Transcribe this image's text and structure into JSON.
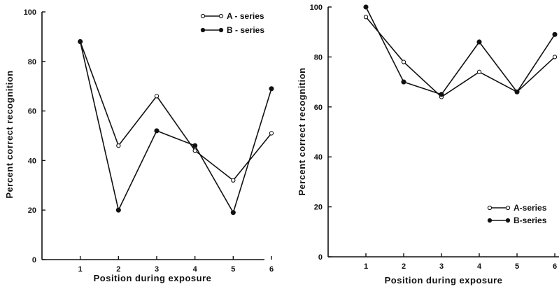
{
  "chart_data": [
    {
      "type": "line",
      "xlabel": "Position during exposure",
      "ylabel": "Percent correct recognition",
      "x": [
        1,
        2,
        3,
        4,
        5,
        6
      ],
      "xlim": [
        0,
        6
      ],
      "ylim": [
        0,
        100
      ],
      "xticks": [
        "1",
        "2",
        "3",
        "4",
        "5",
        "6"
      ],
      "yticks": [
        "0",
        "20",
        "40",
        "60",
        "80",
        "100"
      ],
      "legend_position": "top-right",
      "series": [
        {
          "name": "A - series",
          "marker": "open-circle",
          "values": [
            88,
            46,
            66,
            44,
            32,
            51
          ]
        },
        {
          "name": "B - series",
          "marker": "filled-circle",
          "values": [
            88,
            20,
            52,
            46,
            19,
            69
          ]
        }
      ]
    },
    {
      "type": "line",
      "xlabel": "Position during exposure",
      "ylabel": "Percent correct recognition",
      "x": [
        1,
        2,
        3,
        4,
        5,
        6
      ],
      "xlim": [
        0,
        6
      ],
      "ylim": [
        0,
        100
      ],
      "xticks": [
        "1",
        "2",
        "3",
        "4",
        "5",
        "6"
      ],
      "yticks": [
        "0",
        "20",
        "40",
        "60",
        "80",
        "100"
      ],
      "legend_position": "bottom-right",
      "series": [
        {
          "name": "A-series",
          "marker": "open-circle",
          "values": [
            96,
            78,
            64,
            74,
            66,
            80
          ]
        },
        {
          "name": "B-series",
          "marker": "filled-circle",
          "values": [
            100,
            70,
            65,
            86,
            66,
            89
          ]
        }
      ]
    }
  ]
}
